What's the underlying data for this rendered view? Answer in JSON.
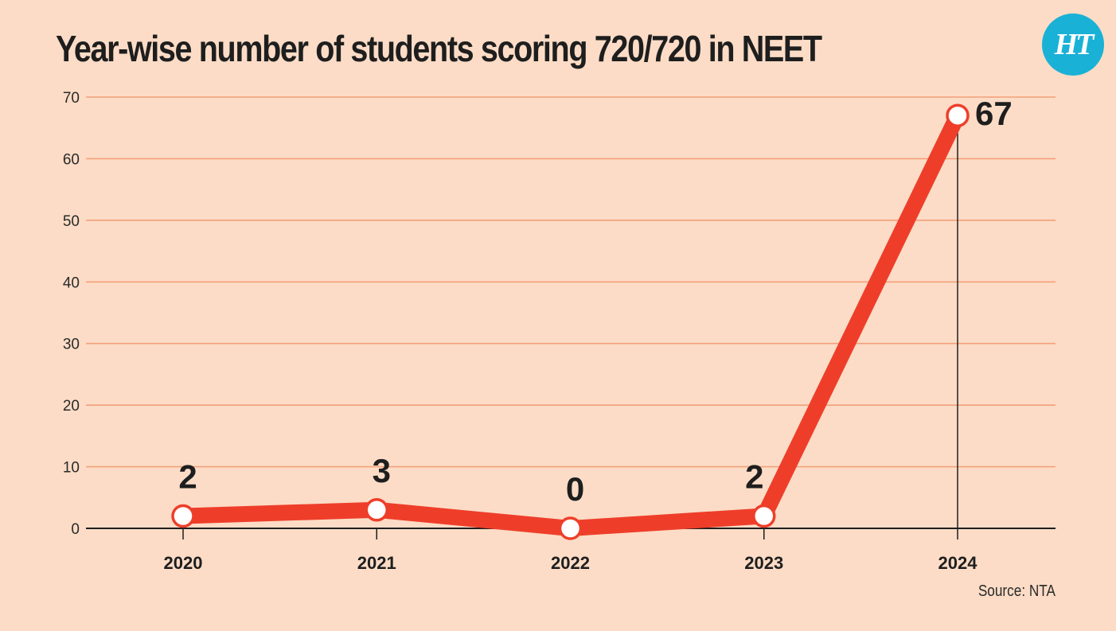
{
  "header": {
    "title": "Year-wise number of students scoring 720/720 in NEET",
    "logo_text": "HT"
  },
  "footer": {
    "source": "Source: NTA"
  },
  "colors": {
    "background": "#fcdcc6",
    "line": "#ee3e2a",
    "grid": "#f2a07a",
    "logo": "#1ab1d6"
  },
  "chart_data": {
    "type": "line",
    "title": "Year-wise number of students scoring 720/720 in NEET",
    "xlabel": "",
    "ylabel": "",
    "categories": [
      "2020",
      "2021",
      "2022",
      "2023",
      "2024"
    ],
    "series": [
      {
        "values": [
          2,
          3,
          0,
          2,
          67
        ]
      }
    ],
    "data_labels": [
      "2",
      "3",
      "0",
      "2",
      "67"
    ],
    "ylim": [
      0,
      70
    ],
    "yticks": [
      0,
      10,
      20,
      30,
      40,
      50,
      60,
      70
    ],
    "grid": true,
    "legend": "none"
  }
}
